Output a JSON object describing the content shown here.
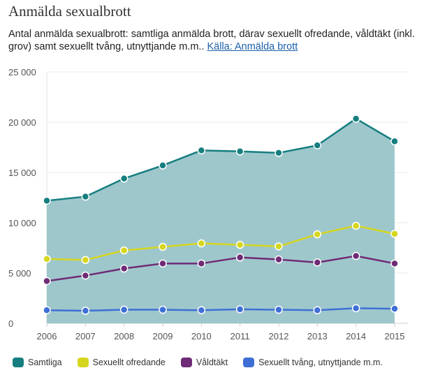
{
  "header": {
    "title": "Anmälda sexualbrott",
    "subtitle": "Antal anmälda sexualbrott: samtliga anmälda brott, därav sexuellt ofredande, våldtäkt (inkl. grov) samt sexuellt tvång, utnyttjande m.m..",
    "source_link": "Källa: Anmälda brott"
  },
  "chart_data": {
    "type": "line",
    "x": [
      "2006",
      "2007",
      "2008",
      "2009",
      "2010",
      "2011",
      "2012",
      "2013",
      "2014",
      "2015"
    ],
    "ylim": [
      0,
      25000
    ],
    "yticks": [
      0,
      5000,
      10000,
      15000,
      20000,
      25000
    ],
    "ytick_labels": [
      "0",
      "5 000",
      "10 000",
      "15 000",
      "20 000",
      "25 000"
    ],
    "grid": true,
    "legend_position": "bottom",
    "series": [
      {
        "name": "Samtliga",
        "color": "#167e7f",
        "fill": true,
        "values": [
          12200,
          12600,
          14400,
          15700,
          17200,
          17100,
          16950,
          17700,
          20350,
          18100
        ]
      },
      {
        "name": "Sexuellt ofredande",
        "color": "#d6d61e",
        "fill": false,
        "values": [
          6400,
          6300,
          7250,
          7600,
          7950,
          7800,
          7650,
          8850,
          9700,
          8900
        ]
      },
      {
        "name": "Våldtäkt",
        "color": "#6f2b75",
        "fill": false,
        "values": [
          4200,
          4750,
          5450,
          5950,
          5950,
          6550,
          6350,
          6050,
          6700,
          5950
        ]
      },
      {
        "name": "Sexuellt tvång, utnyttjande m.m.",
        "color": "#3f6fd6",
        "fill": false,
        "values": [
          1300,
          1250,
          1350,
          1350,
          1300,
          1400,
          1350,
          1300,
          1500,
          1450
        ]
      }
    ]
  }
}
